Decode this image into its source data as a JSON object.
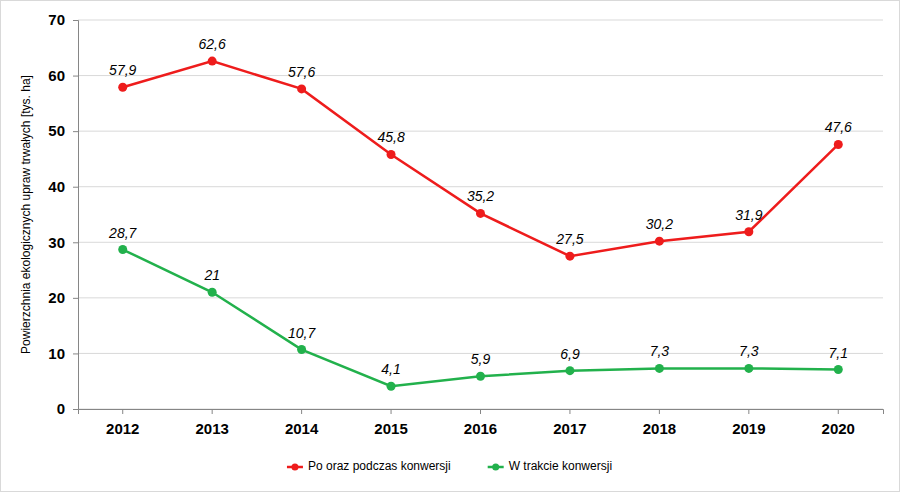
{
  "chart_data": {
    "type": "line",
    "y_label": "Powierzchnia ekologicznych upraw trwałych [tys. ha]",
    "categories": [
      "2012",
      "2013",
      "2014",
      "2015",
      "2016",
      "2017",
      "2018",
      "2019",
      "2020"
    ],
    "series": [
      {
        "name": "Po oraz podczas konwersji",
        "color": "#ee1c1c",
        "marker": "circle",
        "values": [
          57.9,
          62.6,
          57.6,
          45.8,
          35.2,
          27.5,
          30.2,
          31.9,
          47.6
        ],
        "value_labels": [
          "57,9",
          "62,6",
          "57,6",
          "45,8",
          "35,2",
          "27,5",
          "30,2",
          "31,9",
          "47,6"
        ]
      },
      {
        "name": "W trakcie konwersji",
        "color": "#22b14c",
        "marker": "circle",
        "values": [
          28.7,
          21,
          10.7,
          4.1,
          5.9,
          6.9,
          7.3,
          7.3,
          7.1
        ],
        "value_labels": [
          "28,7",
          "21",
          "10,7",
          "4,1",
          "5,9",
          "6,9",
          "7,3",
          "7,3",
          "7,1"
        ]
      }
    ],
    "ylim": [
      0,
      70
    ],
    "yticks": [
      0,
      10,
      20,
      30,
      40,
      50,
      60,
      70
    ],
    "grid": true,
    "data_labels": true,
    "legend": "bottom"
  }
}
